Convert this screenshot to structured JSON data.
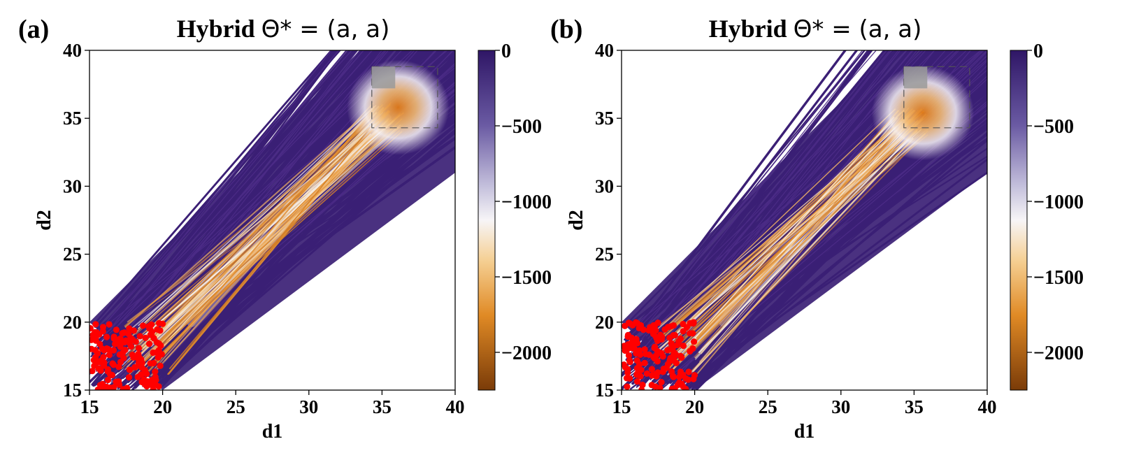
{
  "figure": {
    "colors": {
      "purple": "#3b1f75",
      "white": "#f5f3f6",
      "orange": "#eda048",
      "brown": "#7a3b08",
      "red": "#ff0000",
      "gray": "#9a9a9a"
    }
  },
  "chart_data": [
    {
      "type": "line",
      "panel_label": "(a)",
      "title_text": "Hybrid ",
      "title_math": "Θ* = (a, a)",
      "xlabel": "d1",
      "ylabel": "d2",
      "xlim": [
        15,
        40
      ],
      "ylim": [
        15,
        40
      ],
      "xticks": [
        "15",
        "20",
        "25",
        "30",
        "35",
        "40"
      ],
      "yticks": [
        "15",
        "20",
        "25",
        "30",
        "35",
        "40"
      ],
      "colorbar": {
        "range": [
          -2250,
          0
        ],
        "ticks": [
          "0",
          "−500",
          "−1000",
          "−1500",
          "−2000"
        ],
        "tick_values": [
          0,
          -500,
          -1000,
          -1500,
          -2000
        ]
      },
      "start_region": {
        "d1": [
          15,
          20
        ],
        "d2": [
          15,
          20
        ]
      },
      "target_region": {
        "d1": [
          34.3,
          38.8
        ],
        "d2": [
          34.3,
          38.8
        ]
      },
      "hotspot_center": {
        "d1": 35.3,
        "d2": 35.0
      }
    },
    {
      "type": "line",
      "panel_label": "(b)",
      "title_text": "Hybrid ",
      "title_math": "Θ* = (a, a)",
      "xlabel": "d1",
      "ylabel": "d2",
      "xlim": [
        15,
        40
      ],
      "ylim": [
        15,
        40
      ],
      "xticks": [
        "15",
        "20",
        "25",
        "30",
        "35",
        "40"
      ],
      "yticks": [
        "15",
        "20",
        "25",
        "30",
        "35",
        "40"
      ],
      "colorbar": {
        "range": [
          -2250,
          0
        ],
        "ticks": [
          "0",
          "−500",
          "−1000",
          "−1500",
          "−2000"
        ],
        "tick_values": [
          0,
          -500,
          -1000,
          -1500,
          -2000
        ]
      },
      "start_region": {
        "d1": [
          15,
          20
        ],
        "d2": [
          15,
          20
        ]
      },
      "target_region": {
        "d1": [
          34.3,
          38.8
        ],
        "d2": [
          34.3,
          38.8
        ]
      },
      "hotspot_center": {
        "d1": 34.8,
        "d2": 34.6
      }
    }
  ]
}
